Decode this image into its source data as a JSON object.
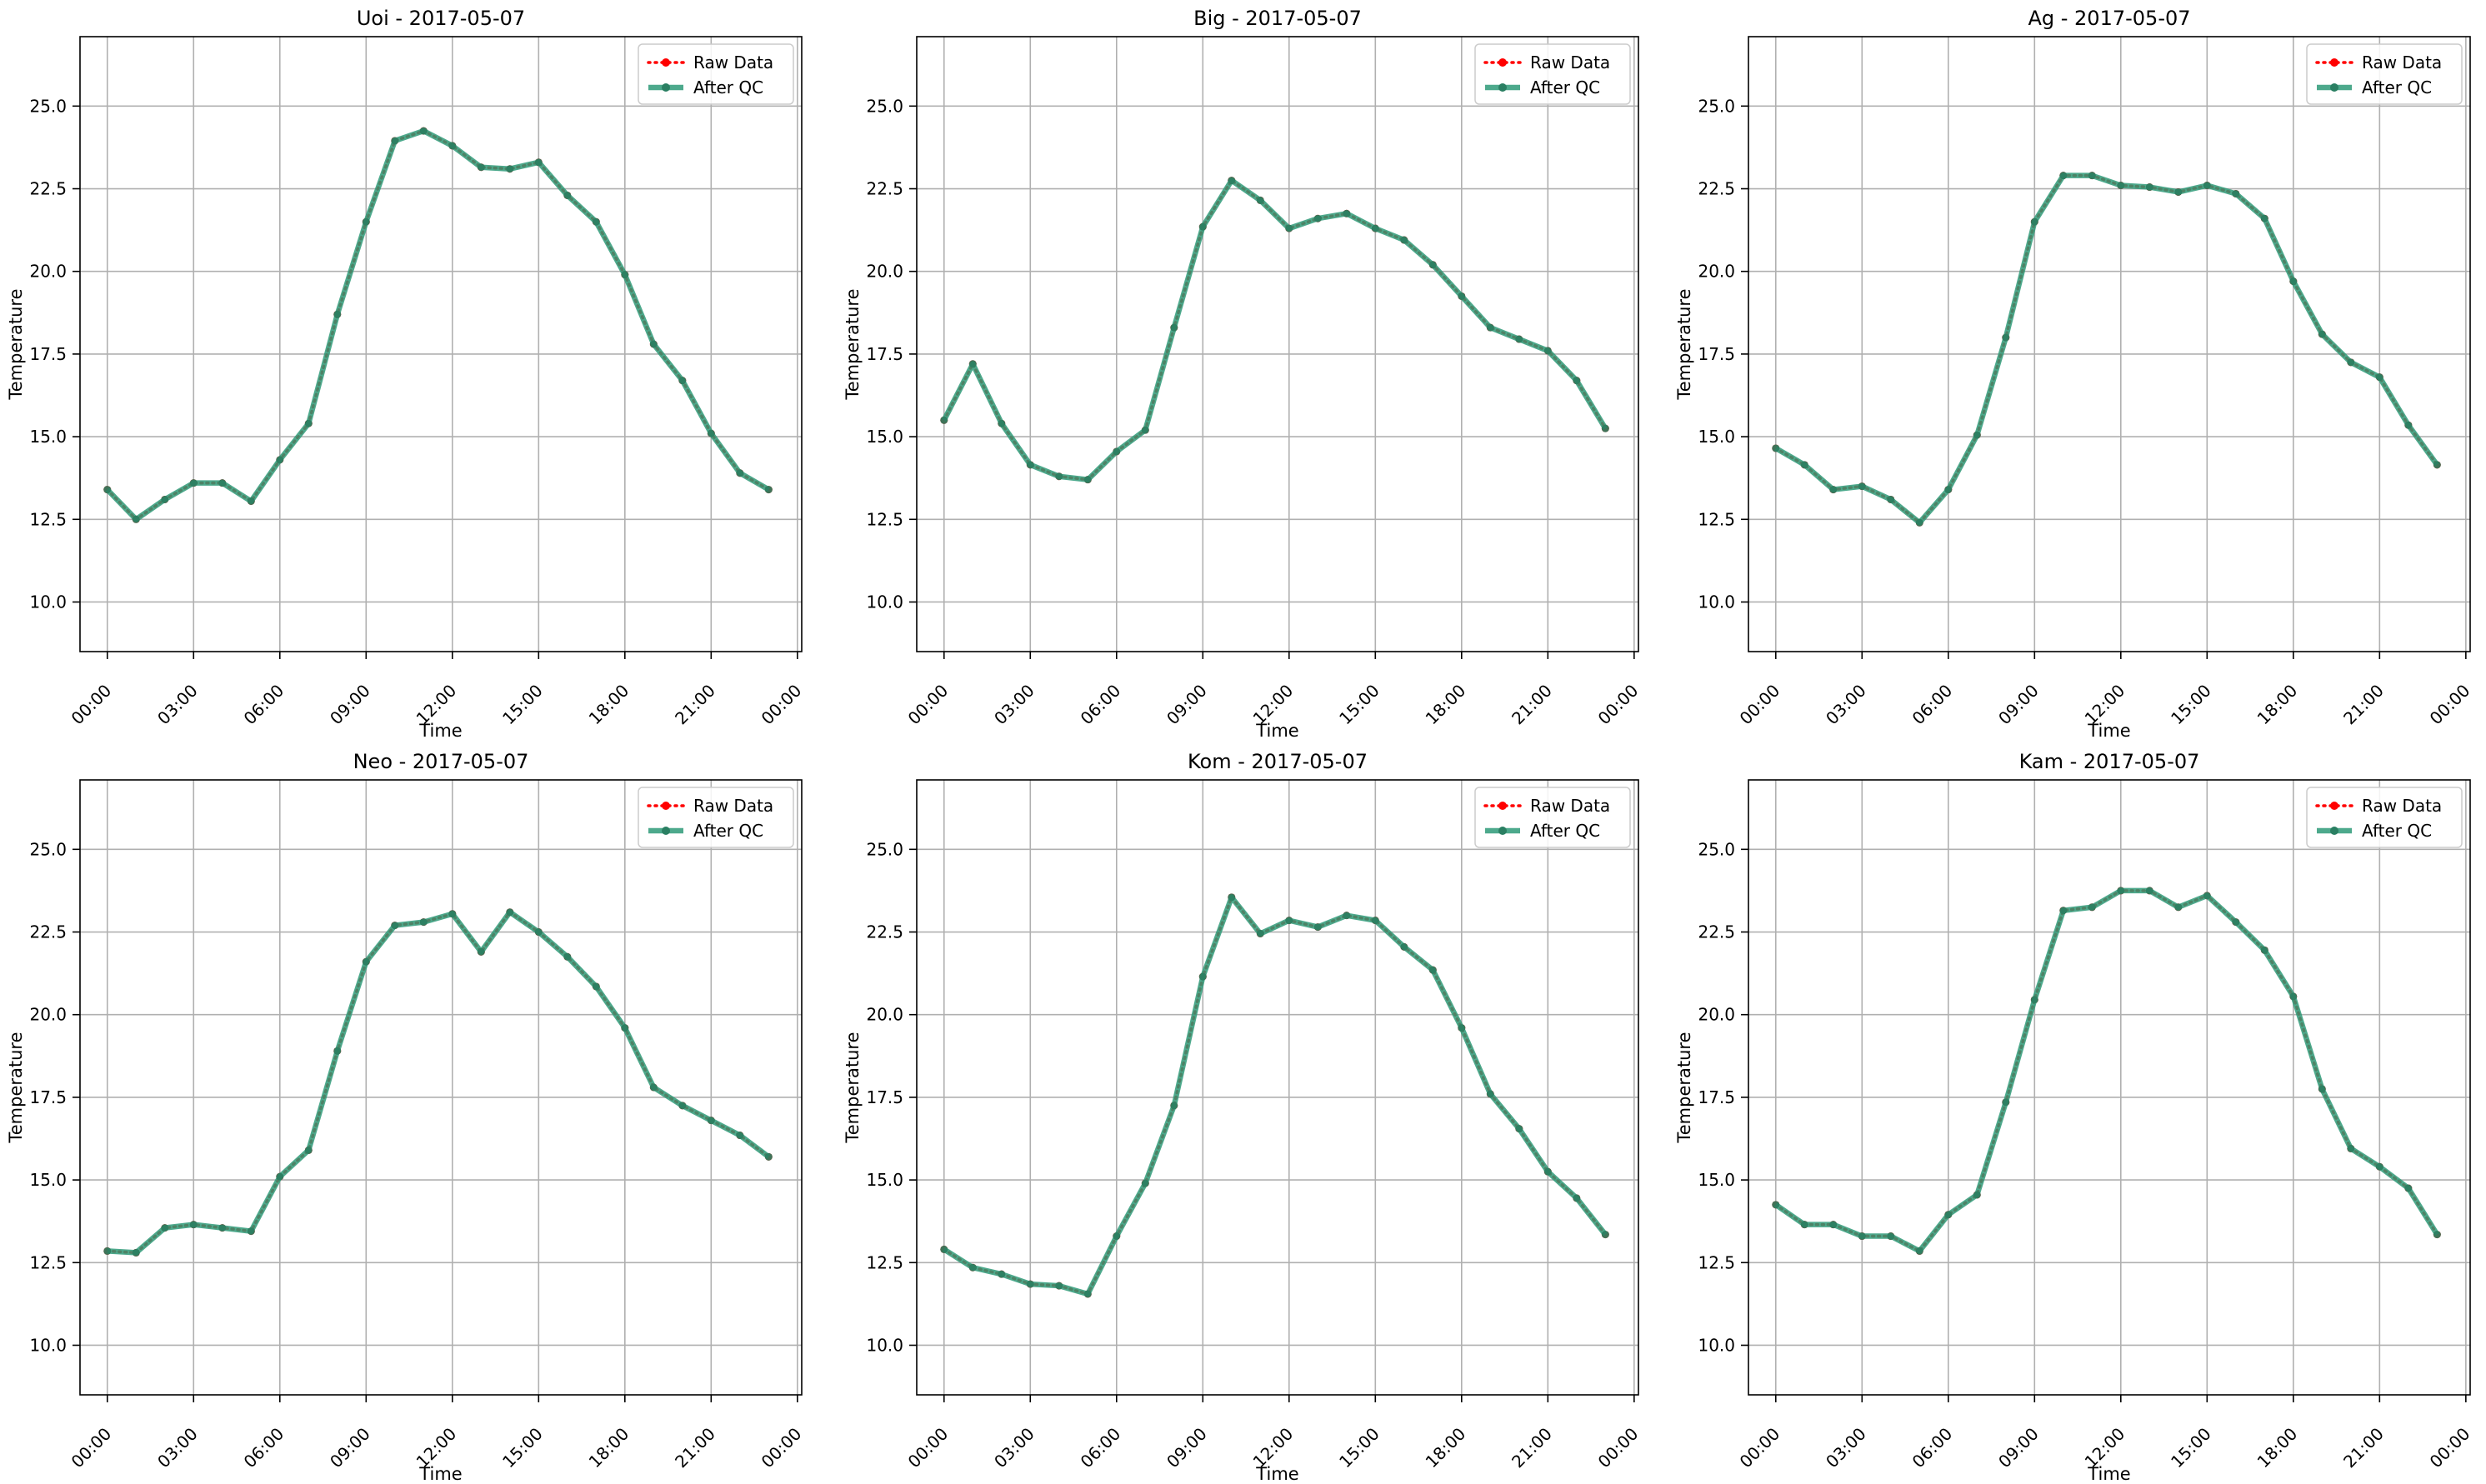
{
  "figure": {
    "xlabel": "Time",
    "ylabel": "Temperature",
    "legend": {
      "raw_label": "Raw Data",
      "qc_label": "After QC",
      "placement": "upper right"
    }
  },
  "colors": {
    "raw": "#ff0000",
    "qc": "#2e9a78",
    "grid": "#b0b0b0",
    "axis": "#000000"
  },
  "chart_data": [
    {
      "type": "line",
      "title": "Uoi - 2017-05-07",
      "xlabel": "Time",
      "ylabel": "Temperature",
      "x": [
        "00:00",
        "01:00",
        "02:00",
        "03:00",
        "04:00",
        "05:00",
        "06:00",
        "07:00",
        "08:00",
        "09:00",
        "10:00",
        "11:00",
        "12:00",
        "13:00",
        "14:00",
        "15:00",
        "16:00",
        "17:00",
        "18:00",
        "19:00",
        "20:00",
        "21:00",
        "22:00",
        "23:00"
      ],
      "x_ticks": [
        "00:00",
        "03:00",
        "06:00",
        "09:00",
        "12:00",
        "15:00",
        "18:00",
        "21:00",
        "00:00"
      ],
      "y_ticks": [
        "10.0",
        "12.5",
        "15.0",
        "17.5",
        "20.0",
        "22.5",
        "25.0"
      ],
      "xlim_hours": [
        -0.95,
        24.15
      ],
      "ylim": [
        8.5,
        27.1
      ],
      "grid": true,
      "series": [
        {
          "name": "Raw Data",
          "values": [
            13.4,
            12.5,
            13.1,
            13.6,
            13.6,
            13.05,
            14.3,
            15.4,
            18.7,
            21.5,
            23.95,
            24.25,
            23.8,
            23.15,
            23.1,
            23.3,
            22.3,
            21.5,
            19.9,
            17.8,
            16.7,
            15.1,
            13.9,
            13.4
          ]
        },
        {
          "name": "After QC",
          "values": [
            13.4,
            12.5,
            13.1,
            13.6,
            13.6,
            13.05,
            14.3,
            15.4,
            18.7,
            21.5,
            23.95,
            24.25,
            23.8,
            23.15,
            23.1,
            23.3,
            22.3,
            21.5,
            19.9,
            17.8,
            16.7,
            15.1,
            13.9,
            13.4
          ]
        }
      ]
    },
    {
      "type": "line",
      "title": "Big - 2017-05-07",
      "xlabel": "Time",
      "ylabel": "Temperature",
      "x": [
        "00:00",
        "01:00",
        "02:00",
        "03:00",
        "04:00",
        "05:00",
        "06:00",
        "07:00",
        "08:00",
        "09:00",
        "10:00",
        "11:00",
        "12:00",
        "13:00",
        "14:00",
        "15:00",
        "16:00",
        "17:00",
        "18:00",
        "19:00",
        "20:00",
        "21:00",
        "22:00",
        "23:00"
      ],
      "x_ticks": [
        "00:00",
        "03:00",
        "06:00",
        "09:00",
        "12:00",
        "15:00",
        "18:00",
        "21:00",
        "00:00"
      ],
      "y_ticks": [
        "10.0",
        "12.5",
        "15.0",
        "17.5",
        "20.0",
        "22.5",
        "25.0"
      ],
      "xlim_hours": [
        -0.95,
        24.15
      ],
      "ylim": [
        8.5,
        27.1
      ],
      "grid": true,
      "series": [
        {
          "name": "Raw Data",
          "values": [
            15.5,
            17.2,
            15.4,
            14.15,
            13.8,
            13.7,
            14.55,
            15.2,
            18.3,
            21.35,
            22.75,
            22.15,
            21.3,
            21.6,
            21.75,
            21.3,
            20.95,
            20.2,
            19.25,
            18.3,
            17.95,
            17.6,
            16.7,
            15.25
          ]
        },
        {
          "name": "After QC",
          "values": [
            15.5,
            17.2,
            15.4,
            14.15,
            13.8,
            13.7,
            14.55,
            15.2,
            18.3,
            21.35,
            22.75,
            22.15,
            21.3,
            21.6,
            21.75,
            21.3,
            20.95,
            20.2,
            19.25,
            18.3,
            17.95,
            17.6,
            16.7,
            15.25
          ]
        }
      ]
    },
    {
      "type": "line",
      "title": "Ag - 2017-05-07",
      "xlabel": "Time",
      "ylabel": "Temperature",
      "x": [
        "00:00",
        "01:00",
        "02:00",
        "03:00",
        "04:00",
        "05:00",
        "06:00",
        "07:00",
        "08:00",
        "09:00",
        "10:00",
        "11:00",
        "12:00",
        "13:00",
        "14:00",
        "15:00",
        "16:00",
        "17:00",
        "18:00",
        "19:00",
        "20:00",
        "21:00",
        "22:00",
        "23:00"
      ],
      "x_ticks": [
        "00:00",
        "03:00",
        "06:00",
        "09:00",
        "12:00",
        "15:00",
        "18:00",
        "21:00",
        "00:00"
      ],
      "y_ticks": [
        "10.0",
        "12.5",
        "15.0",
        "17.5",
        "20.0",
        "22.5",
        "25.0"
      ],
      "xlim_hours": [
        -0.95,
        24.15
      ],
      "ylim": [
        8.5,
        27.1
      ],
      "grid": true,
      "series": [
        {
          "name": "Raw Data",
          "values": [
            14.65,
            14.15,
            13.4,
            13.5,
            13.1,
            12.4,
            13.4,
            15.05,
            18.0,
            21.5,
            22.9,
            22.9,
            22.6,
            22.55,
            22.4,
            22.6,
            22.35,
            21.6,
            19.7,
            18.1,
            17.25,
            16.8,
            15.35,
            14.15
          ]
        },
        {
          "name": "After QC",
          "values": [
            14.65,
            14.15,
            13.4,
            13.5,
            13.1,
            12.4,
            13.4,
            15.05,
            18.0,
            21.5,
            22.9,
            22.9,
            22.6,
            22.55,
            22.4,
            22.6,
            22.35,
            21.6,
            19.7,
            18.1,
            17.25,
            16.8,
            15.35,
            14.15
          ]
        }
      ]
    },
    {
      "type": "line",
      "title": "Neo - 2017-05-07",
      "xlabel": "Time",
      "ylabel": "Temperature",
      "x": [
        "00:00",
        "01:00",
        "02:00",
        "03:00",
        "04:00",
        "05:00",
        "06:00",
        "07:00",
        "08:00",
        "09:00",
        "10:00",
        "11:00",
        "12:00",
        "13:00",
        "14:00",
        "15:00",
        "16:00",
        "17:00",
        "18:00",
        "19:00",
        "20:00",
        "21:00",
        "22:00",
        "23:00"
      ],
      "x_ticks": [
        "00:00",
        "03:00",
        "06:00",
        "09:00",
        "12:00",
        "15:00",
        "18:00",
        "21:00",
        "00:00"
      ],
      "y_ticks": [
        "10.0",
        "12.5",
        "15.0",
        "17.5",
        "20.0",
        "22.5",
        "25.0"
      ],
      "xlim_hours": [
        -0.95,
        24.15
      ],
      "ylim": [
        8.5,
        27.1
      ],
      "grid": true,
      "series": [
        {
          "name": "Raw Data",
          "values": [
            12.85,
            12.8,
            13.55,
            13.65,
            13.55,
            13.45,
            15.1,
            15.9,
            18.9,
            21.6,
            22.7,
            22.8,
            23.05,
            21.9,
            23.1,
            22.5,
            21.75,
            20.85,
            19.6,
            17.8,
            17.25,
            16.8,
            16.35,
            15.7
          ]
        },
        {
          "name": "After QC",
          "values": [
            12.85,
            12.8,
            13.55,
            13.65,
            13.55,
            13.45,
            15.1,
            15.9,
            18.9,
            21.6,
            22.7,
            22.8,
            23.05,
            21.9,
            23.1,
            22.5,
            21.75,
            20.85,
            19.6,
            17.8,
            17.25,
            16.8,
            16.35,
            15.7
          ]
        }
      ]
    },
    {
      "type": "line",
      "title": "Kom - 2017-05-07",
      "xlabel": "Time",
      "ylabel": "Temperature",
      "x": [
        "00:00",
        "01:00",
        "02:00",
        "03:00",
        "04:00",
        "05:00",
        "06:00",
        "07:00",
        "08:00",
        "09:00",
        "10:00",
        "11:00",
        "12:00",
        "13:00",
        "14:00",
        "15:00",
        "16:00",
        "17:00",
        "18:00",
        "19:00",
        "20:00",
        "21:00",
        "22:00",
        "23:00"
      ],
      "x_ticks": [
        "00:00",
        "03:00",
        "06:00",
        "09:00",
        "12:00",
        "15:00",
        "18:00",
        "21:00",
        "00:00"
      ],
      "y_ticks": [
        "10.0",
        "12.5",
        "15.0",
        "17.5",
        "20.0",
        "22.5",
        "25.0"
      ],
      "xlim_hours": [
        -0.95,
        24.15
      ],
      "ylim": [
        8.5,
        27.1
      ],
      "grid": true,
      "series": [
        {
          "name": "Raw Data",
          "values": [
            12.9,
            12.35,
            12.15,
            11.85,
            11.8,
            11.55,
            13.3,
            14.9,
            17.25,
            21.15,
            23.55,
            22.45,
            22.85,
            22.65,
            23.0,
            22.85,
            22.05,
            21.35,
            19.6,
            17.6,
            16.55,
            15.25,
            14.45,
            13.35
          ]
        },
        {
          "name": "After QC",
          "values": [
            12.9,
            12.35,
            12.15,
            11.85,
            11.8,
            11.55,
            13.3,
            14.9,
            17.25,
            21.15,
            23.55,
            22.45,
            22.85,
            22.65,
            23.0,
            22.85,
            22.05,
            21.35,
            19.6,
            17.6,
            16.55,
            15.25,
            14.45,
            13.35
          ]
        }
      ]
    },
    {
      "type": "line",
      "title": "Kam - 2017-05-07",
      "xlabel": "Time",
      "ylabel": "Temperature",
      "x": [
        "00:00",
        "01:00",
        "02:00",
        "03:00",
        "04:00",
        "05:00",
        "06:00",
        "07:00",
        "08:00",
        "09:00",
        "10:00",
        "11:00",
        "12:00",
        "13:00",
        "14:00",
        "15:00",
        "16:00",
        "17:00",
        "18:00",
        "19:00",
        "20:00",
        "21:00",
        "22:00",
        "23:00"
      ],
      "x_ticks": [
        "00:00",
        "03:00",
        "06:00",
        "09:00",
        "12:00",
        "15:00",
        "18:00",
        "21:00",
        "00:00"
      ],
      "y_ticks": [
        "10.0",
        "12.5",
        "15.0",
        "17.5",
        "20.0",
        "22.5",
        "25.0"
      ],
      "xlim_hours": [
        -0.95,
        24.15
      ],
      "ylim": [
        8.5,
        27.1
      ],
      "grid": true,
      "series": [
        {
          "name": "Raw Data",
          "values": [
            14.25,
            13.65,
            13.65,
            13.3,
            13.3,
            12.85,
            13.95,
            14.55,
            17.35,
            20.45,
            23.15,
            23.25,
            23.75,
            23.75,
            23.25,
            23.6,
            22.8,
            21.95,
            20.55,
            17.75,
            15.95,
            15.4,
            14.75,
            13.35
          ]
        },
        {
          "name": "After QC",
          "values": [
            14.25,
            13.65,
            13.65,
            13.3,
            13.3,
            12.85,
            13.95,
            14.55,
            17.35,
            20.45,
            23.15,
            23.25,
            23.75,
            23.75,
            23.25,
            23.6,
            22.8,
            21.95,
            20.55,
            17.75,
            15.95,
            15.4,
            14.75,
            13.35
          ]
        }
      ]
    }
  ]
}
